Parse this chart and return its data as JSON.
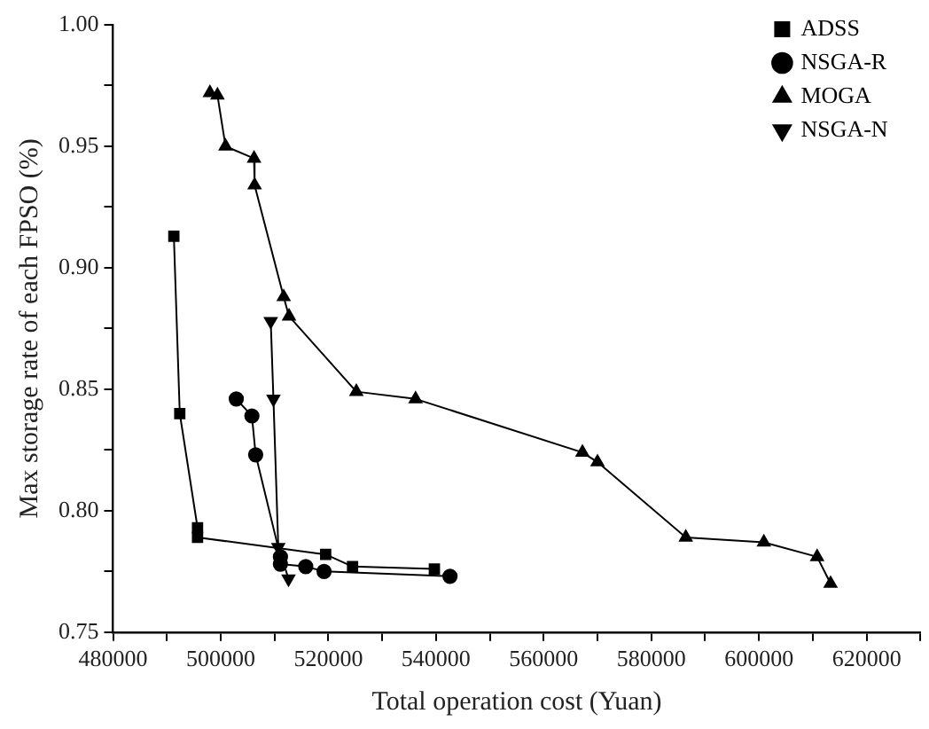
{
  "chart_data": {
    "type": "line",
    "xlabel": "Total operation cost (Yuan)",
    "ylabel": "Max storage rate of each FPSO (%)",
    "xlim": [
      480000,
      630000
    ],
    "ylim": [
      0.75,
      1.0
    ],
    "xticks": [
      480000,
      {
        "value": 490000,
        "label": null
      },
      500000,
      {
        "value": 510000,
        "label": null
      },
      520000,
      {
        "value": 530000,
        "label": null
      },
      540000,
      {
        "value": 550000,
        "label": null
      },
      560000,
      {
        "value": 570000,
        "label": null
      },
      580000,
      {
        "value": 590000,
        "label": null
      },
      600000,
      {
        "value": 610000,
        "label": null
      },
      620000,
      {
        "value": 630000,
        "label": null
      }
    ],
    "yticks": [
      {
        "value": 0.75,
        "label": "0.75"
      },
      {
        "value": 0.775,
        "label": null
      },
      {
        "value": 0.8,
        "label": "0.80"
      },
      {
        "value": 0.825,
        "label": null
      },
      {
        "value": 0.85,
        "label": "0.85"
      },
      {
        "value": 0.875,
        "label": null
      },
      {
        "value": 0.9,
        "label": "0.90"
      },
      {
        "value": 0.925,
        "label": null
      },
      {
        "value": 0.95,
        "label": "0.95"
      },
      {
        "value": 0.975,
        "label": null
      },
      {
        "value": 1.0,
        "label": "1.00"
      }
    ],
    "grid": false,
    "legend": "top right",
    "series": [
      {
        "name": "ADSS",
        "color": "#000000",
        "marker": "square",
        "x": [
          491300,
          492400,
          495700,
          495700,
          519500,
          524500,
          539700
        ],
        "values": [
          0.913,
          0.84,
          0.793,
          0.789,
          0.782,
          0.777,
          0.776
        ]
      },
      {
        "name": "NSGA-R",
        "color": "#000000",
        "marker": "circle",
        "x": [
          502900,
          505800,
          506500,
          511100,
          511100,
          515800,
          519200,
          542600
        ],
        "values": [
          0.846,
          0.839,
          0.823,
          0.781,
          0.778,
          0.777,
          0.775,
          0.773
        ]
      },
      {
        "name": "MOGA",
        "color": "#000000",
        "marker": "triangle",
        "x": [
          498000,
          499400,
          500900,
          506200,
          506300,
          511700,
          512700,
          525200,
          536200,
          567200,
          570000,
          586400,
          600900,
          610800,
          613300
        ],
        "values": [
          0.972,
          0.971,
          0.95,
          0.945,
          0.934,
          0.888,
          0.88,
          0.849,
          0.846,
          0.824,
          0.82,
          0.789,
          0.787,
          0.781,
          0.77
        ]
      },
      {
        "name": "NSGA-N",
        "color": "#000000",
        "marker": "triangle_down",
        "x": [
          509300,
          509800,
          510700,
          512600
        ],
        "values": [
          0.878,
          0.846,
          0.785,
          0.772
        ]
      }
    ]
  }
}
